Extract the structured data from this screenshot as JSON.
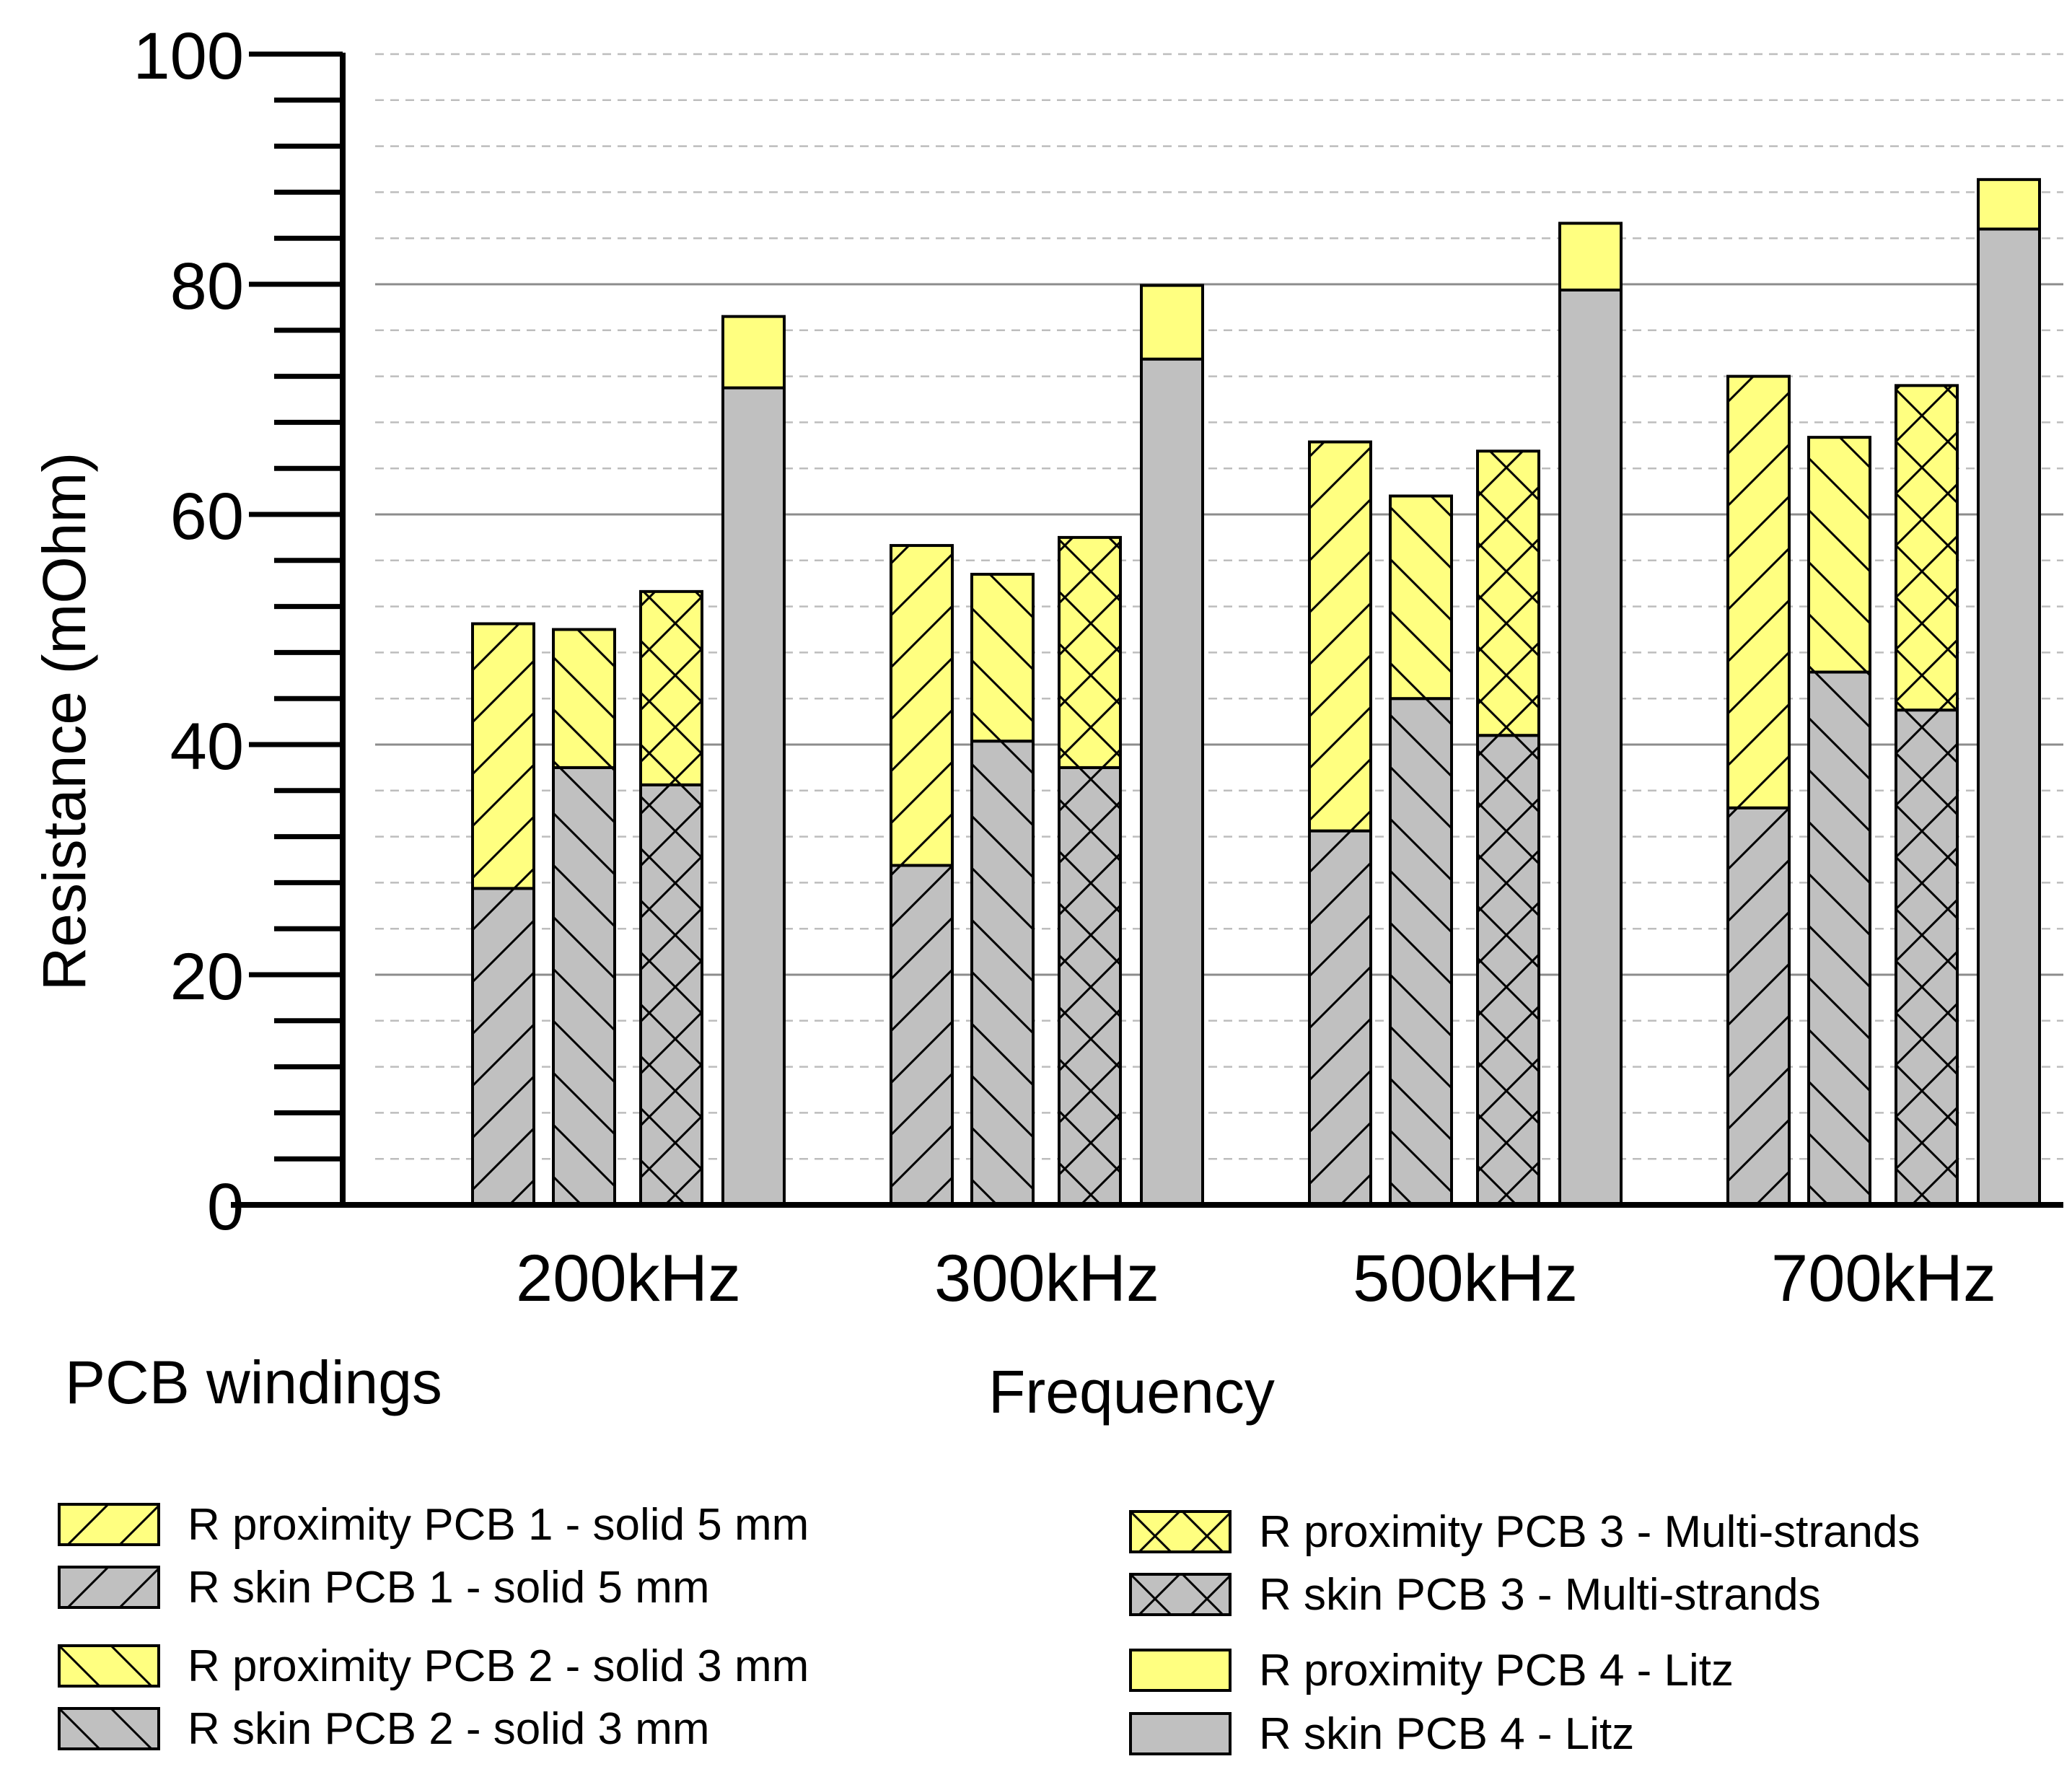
{
  "chart_data": {
    "type": "bar",
    "stacked": true,
    "ylabel": "Resistance (mOhm)",
    "xlabel": "Frequency",
    "corner_label": "PCB windings",
    "ylim": [
      0,
      100
    ],
    "yticks": [
      0,
      20,
      40,
      60,
      80,
      100
    ],
    "categories": [
      "200kHz",
      "300kHz",
      "500kHz",
      "700kHz"
    ],
    "windings": [
      {
        "id": "pcb1",
        "hatch": "diag-up",
        "skin_name": "R skin PCB 1 - solid 5 mm",
        "proximity_name": "R proximity PCB 1 - solid 5 mm",
        "skin": [
          27.5,
          29.5,
          32.5,
          34.5
        ],
        "proximity": [
          23.0,
          27.8,
          33.8,
          37.5
        ]
      },
      {
        "id": "pcb2",
        "hatch": "diag-down",
        "skin_name": "R skin PCB 2 - solid 3 mm",
        "proximity_name": "R proximity PCB 2 - solid 3 mm",
        "skin": [
          38.0,
          40.3,
          44.0,
          46.3
        ],
        "proximity": [
          12.0,
          14.5,
          17.6,
          20.4
        ]
      },
      {
        "id": "pcb3",
        "hatch": "cross",
        "skin_name": "R skin PCB 3 - Multi-strands",
        "proximity_name": "R proximity PCB 3 - Multi-strands",
        "skin": [
          36.5,
          38.0,
          40.8,
          43.0
        ],
        "proximity": [
          16.8,
          20.0,
          24.7,
          28.2
        ]
      },
      {
        "id": "pcb4",
        "hatch": "none",
        "skin_name": "R skin PCB 4 - Litz",
        "proximity_name": "R proximity PCB 4 - Litz",
        "skin": [
          71.0,
          73.5,
          79.5,
          84.8
        ],
        "proximity": [
          6.2,
          6.4,
          5.8,
          4.3
        ]
      }
    ],
    "legend_order": [
      "R proximity PCB 1 - solid 5 mm",
      "R skin PCB 1 - solid 5 mm",
      "R proximity PCB 2 - solid 3 mm",
      "R skin PCB 2 - solid 3 mm",
      "R proximity PCB 3 - Multi-strands",
      "R skin PCB 3 - Multi-strands",
      "R proximity PCB 4 - Litz",
      "R skin PCB 4 - Litz"
    ],
    "colors": {
      "proximity": "#ffff80",
      "skin": "#c0c0c0",
      "outline": "#000000",
      "grid_major": "#8c8c8c",
      "grid_minor": "#bdbdbd"
    },
    "grid": true
  }
}
